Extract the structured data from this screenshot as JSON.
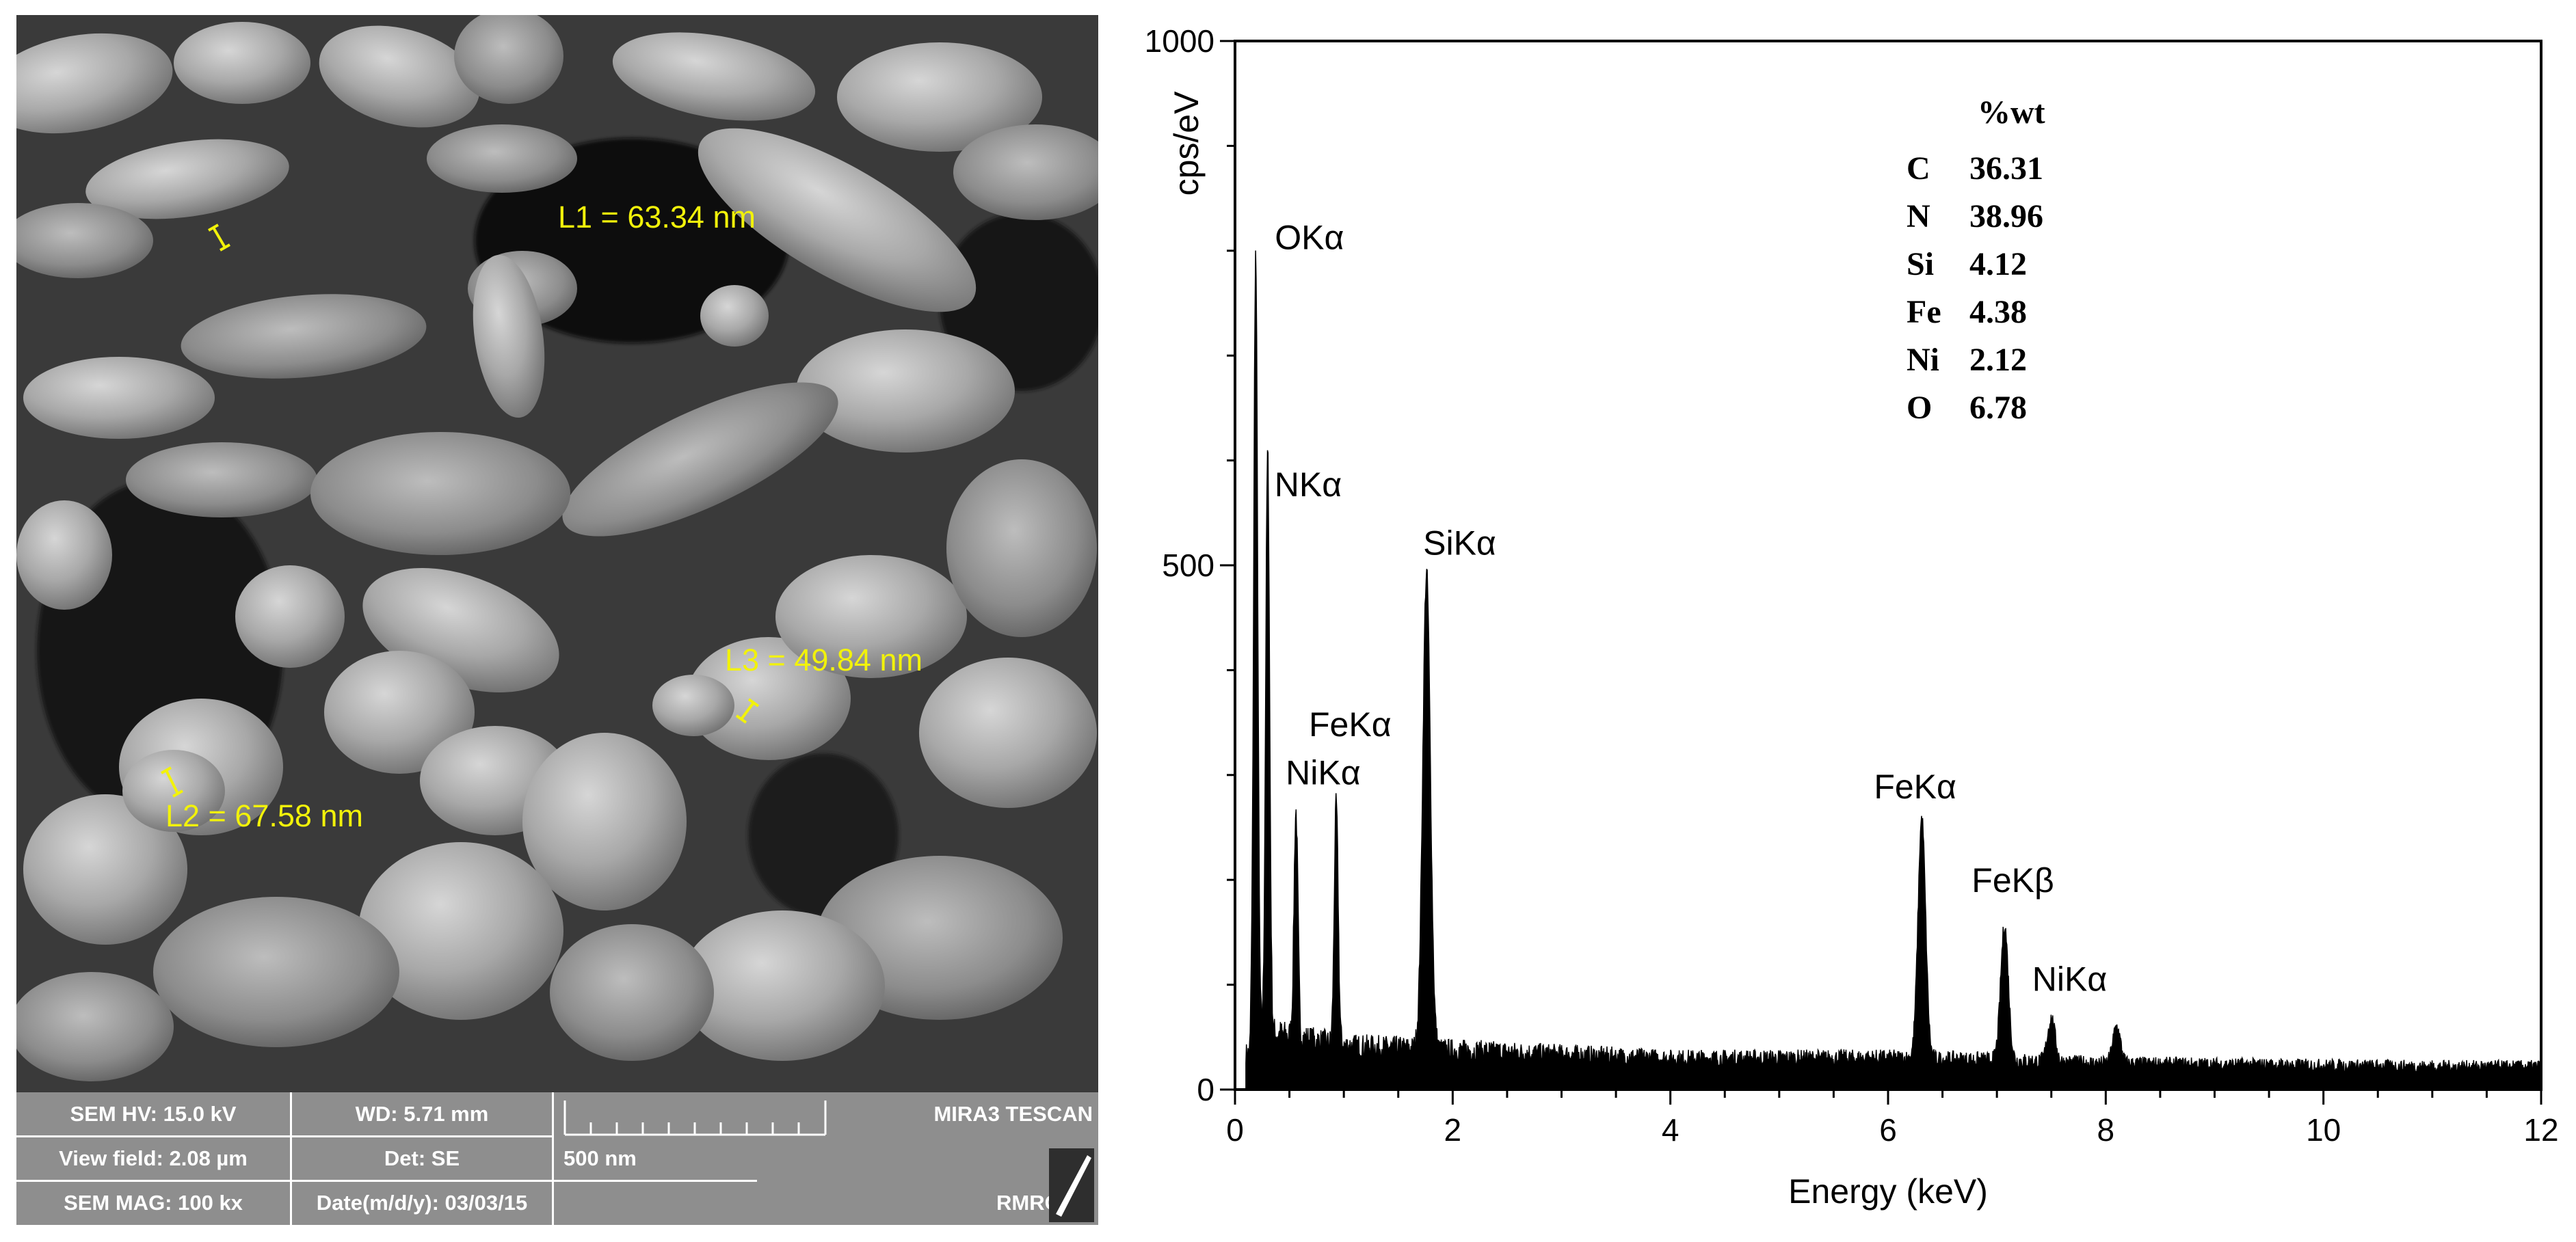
{
  "sem": {
    "measurements": [
      {
        "label": "L1 = 63.34 nm"
      },
      {
        "label": "L2 = 67.58 nm"
      },
      {
        "label": "L3 = 49.84 nm"
      }
    ],
    "info": {
      "hv": "SEM HV: 15.0 kV",
      "wd": "WD: 5.71 mm",
      "instrument": "MIRA3 TESCAN",
      "view_field": "View field: 2.08 µm",
      "detector": "Det: SE",
      "scale_bar": "500 nm",
      "magnification": "SEM MAG: 100 kx",
      "date": "Date(m/d/y): 03/03/15",
      "lab": "RMRC"
    },
    "colors": {
      "annotation": "#f2f20a",
      "infobar": "#8e8e8e"
    }
  },
  "chart_data": {
    "type": "line",
    "xlabel": "Energy (keV)",
    "ylabel": "cps/eV",
    "xlim": [
      0,
      12
    ],
    "ylim": [
      0,
      1000
    ],
    "xticks": [
      0,
      2,
      4,
      6,
      8,
      10,
      12
    ],
    "yticks": [
      0,
      500,
      1000
    ],
    "baseline": {
      "x": [
        0,
        1,
        2,
        3,
        4,
        5,
        6,
        7,
        8,
        9,
        10,
        11,
        12
      ],
      "y": [
        60,
        42,
        38,
        34,
        30,
        30,
        30,
        28,
        25,
        24,
        23,
        22,
        22
      ]
    },
    "peaks": [
      {
        "label": "OKα",
        "x": 0.19,
        "y": 795
      },
      {
        "label": "NKα",
        "x": 0.3,
        "y": 605
      },
      {
        "label": "NiKα",
        "x": 0.56,
        "y": 265
      },
      {
        "label": "FeKα",
        "x": 0.93,
        "y": 272
      },
      {
        "label": "SiKα",
        "x": 1.76,
        "y": 492
      },
      {
        "label": "FeKα",
        "x": 6.31,
        "y": 258
      },
      {
        "label": "FeKβ",
        "x": 7.07,
        "y": 157
      },
      {
        "label": "NiKα",
        "x": 7.5,
        "y": 68
      },
      {
        "label": "",
        "x": 8.1,
        "y": 60
      }
    ],
    "composition": {
      "header": "%wt",
      "rows": [
        {
          "element": "C",
          "value": "36.31"
        },
        {
          "element": "N",
          "value": "38.96"
        },
        {
          "element": "Si",
          "value": "4.12"
        },
        {
          "element": "Fe",
          "value": "4.38"
        },
        {
          "element": "Ni",
          "value": "2.12"
        },
        {
          "element": "O",
          "value": "6.78"
        }
      ]
    }
  }
}
